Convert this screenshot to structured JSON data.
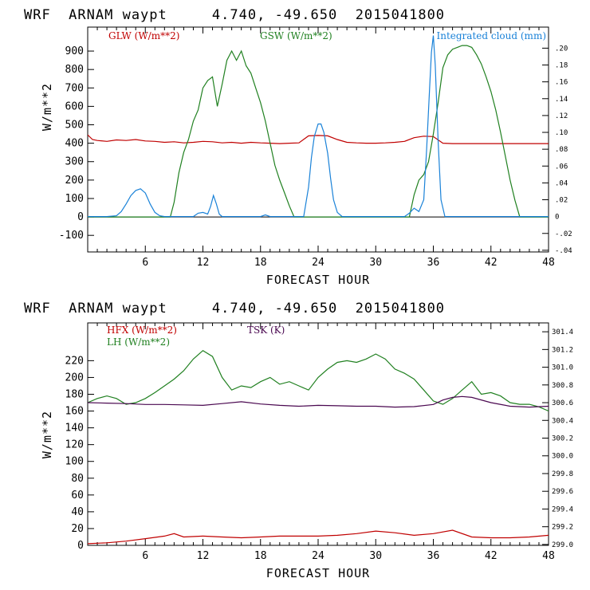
{
  "chart_data": [
    {
      "type": "line",
      "title": "WRF  ARNAM waypt     4.740, -49.650  2015041800",
      "xlabel": "FORECAST HOUR",
      "ylabel": "W/m**2",
      "xlim": [
        0,
        48
      ],
      "ylim": [
        -190,
        1030
      ],
      "x_ticks": [
        6,
        12,
        18,
        24,
        30,
        36,
        42,
        48
      ],
      "y_ticks": [
        900,
        800,
        700,
        600,
        500,
        400,
        300,
        200,
        100,
        0,
        -100
      ],
      "y2_ticks": [
        ".20",
        ".18",
        ".16",
        ".14",
        ".12",
        ".10",
        ".08",
        ".06",
        ".04",
        ".02",
        "0",
        "-.02",
        "-.04"
      ],
      "y2lim": [
        -0.042,
        0.225
      ],
      "legend": [
        "GLW (W/m**2)",
        "GSW (W/m**2)",
        "Integrated cloud (mm)"
      ],
      "series": [
        {
          "name": "GLW (W/m**2)",
          "axis": "left",
          "color": "#c00000",
          "x": [
            0,
            0.5,
            1,
            2,
            3,
            4,
            5,
            6,
            7,
            8,
            9,
            10,
            11,
            12,
            13,
            14,
            15,
            16,
            17,
            18,
            19,
            20,
            21,
            22,
            23,
            24,
            25,
            26,
            27,
            28,
            29,
            30,
            31,
            32,
            33,
            34,
            35,
            36,
            37,
            38,
            40,
            42,
            44,
            46,
            48
          ],
          "values": [
            445,
            420,
            415,
            410,
            418,
            415,
            420,
            412,
            410,
            405,
            408,
            402,
            405,
            410,
            408,
            402,
            405,
            400,
            405,
            402,
            400,
            398,
            400,
            402,
            440,
            442,
            440,
            420,
            405,
            402,
            400,
            400,
            402,
            405,
            410,
            430,
            438,
            436,
            400,
            398,
            398,
            398,
            398,
            398,
            398
          ]
        },
        {
          "name": "GSW (W/m**2)",
          "axis": "left",
          "color": "#208020",
          "x": [
            0,
            8.6,
            9,
            9.5,
            10,
            10.5,
            11,
            11.5,
            12,
            12.5,
            13,
            13.5,
            14,
            14.5,
            15,
            15.5,
            16,
            16.5,
            17,
            17.5,
            18,
            18.5,
            19,
            19.5,
            20,
            20.5,
            21,
            21.5,
            22,
            33.5,
            34,
            34.5,
            35,
            35.5,
            36,
            36.5,
            37,
            37.5,
            38,
            38.5,
            39,
            39.5,
            40,
            40.5,
            41,
            41.5,
            42,
            42.5,
            43,
            43.5,
            44,
            44.5,
            45,
            48
          ],
          "values": [
            0,
            0,
            80,
            240,
            350,
            420,
            520,
            580,
            700,
            740,
            760,
            600,
            720,
            850,
            900,
            850,
            900,
            820,
            780,
            700,
            620,
            520,
            400,
            280,
            200,
            130,
            60,
            0,
            0,
            0,
            120,
            200,
            230,
            300,
            450,
            620,
            810,
            880,
            910,
            920,
            930,
            930,
            920,
            880,
            830,
            760,
            680,
            580,
            460,
            330,
            200,
            90,
            0,
            0
          ]
        },
        {
          "name": "Integrated cloud (mm)",
          "axis": "right",
          "color": "#1a82d8",
          "x": [
            0,
            2,
            3,
            3.5,
            4,
            4.5,
            5,
            5.5,
            6,
            6.5,
            7,
            7.5,
            8,
            11,
            11.5,
            12,
            12.5,
            12.8,
            13.1,
            13.4,
            13.7,
            14,
            18,
            18.5,
            19,
            22.5,
            23,
            23.3,
            23.6,
            24,
            24.3,
            24.6,
            25,
            25.3,
            25.6,
            26,
            26.5,
            33,
            33.5,
            34,
            34.5,
            35,
            35.3,
            35.6,
            35.8,
            36,
            36.2,
            36.5,
            36.8,
            37.2,
            48
          ],
          "values": [
            0,
            0,
            0.001,
            0.006,
            0.015,
            0.025,
            0.031,
            0.033,
            0.028,
            0.015,
            0.005,
            0.001,
            0,
            0,
            0.004,
            0.005,
            0.003,
            0.012,
            0.025,
            0.015,
            0.003,
            0,
            0,
            0.002,
            0,
            0,
            0.035,
            0.07,
            0.095,
            0.11,
            0.11,
            0.1,
            0.075,
            0.045,
            0.02,
            0.005,
            0,
            0,
            0.004,
            0.01,
            0.006,
            0.02,
            0.08,
            0.15,
            0.195,
            0.215,
            0.18,
            0.09,
            0.02,
            0,
            0
          ]
        }
      ]
    },
    {
      "type": "line",
      "title": "WRF  ARNAM waypt     4.740, -49.650  2015041800",
      "xlabel": "FORECAST HOUR",
      "ylabel": "W/m**2",
      "xlim": [
        0,
        48
      ],
      "ylim": [
        0,
        265
      ],
      "x_ticks": [
        6,
        12,
        18,
        24,
        30,
        36,
        42,
        48
      ],
      "y_ticks": [
        220,
        200,
        180,
        160,
        140,
        120,
        100,
        80,
        60,
        40,
        20,
        0
      ],
      "y2_ticks": [
        "301.4",
        "301.2",
        "301.0",
        "300.8",
        "300.6",
        "300.4",
        "300.2",
        "300.0",
        "299.8",
        "299.6",
        "299.4",
        "299.2",
        "299.0"
      ],
      "y2lim": [
        298.99,
        301.5
      ],
      "legend": [
        "HFX (W/m**2)",
        "LH  (W/m**2)",
        "TSK (K)"
      ],
      "series": [
        {
          "name": "HFX (W/m**2)",
          "axis": "left",
          "color": "#c00000",
          "x": [
            0,
            2,
            4,
            6,
            8,
            9,
            10,
            12,
            14,
            16,
            18,
            20,
            22,
            24,
            26,
            28,
            30,
            32,
            34,
            36,
            38,
            40,
            42,
            44,
            46,
            48
          ],
          "values": [
            2,
            3,
            5,
            8,
            11,
            14,
            10,
            11,
            10,
            9,
            10,
            11,
            11,
            11,
            12,
            14,
            17,
            15,
            12,
            14,
            18,
            10,
            9,
            9,
            10,
            12
          ]
        },
        {
          "name": "LH  (W/m**2)",
          "axis": "left",
          "color": "#208020",
          "x": [
            0,
            1,
            2,
            3,
            4,
            5,
            6,
            7,
            8,
            9,
            10,
            11,
            12,
            13,
            14,
            15,
            16,
            17,
            18,
            19,
            20,
            21,
            22,
            23,
            24,
            25,
            26,
            27,
            28,
            29,
            30,
            31,
            32,
            33,
            34,
            35,
            36,
            37,
            38,
            39,
            40,
            41,
            42,
            43,
            44,
            45,
            46,
            47,
            48
          ],
          "values": [
            170,
            175,
            178,
            175,
            168,
            170,
            175,
            182,
            190,
            198,
            208,
            222,
            232,
            225,
            200,
            185,
            190,
            188,
            195,
            200,
            192,
            195,
            190,
            185,
            200,
            210,
            218,
            220,
            218,
            222,
            228,
            222,
            210,
            205,
            198,
            185,
            172,
            168,
            175,
            185,
            195,
            180,
            182,
            178,
            170,
            168,
            168,
            165,
            160
          ]
        },
        {
          "name": "TSK (K)",
          "axis": "right",
          "color": "#4a0850",
          "x": [
            0,
            2,
            4,
            6,
            8,
            10,
            12,
            14,
            16,
            18,
            20,
            22,
            24,
            26,
            28,
            30,
            32,
            34,
            36,
            37,
            38,
            39,
            40,
            42,
            44,
            46,
            48
          ],
          "values": [
            300.6,
            300.595,
            300.59,
            300.58,
            300.58,
            300.575,
            300.57,
            300.59,
            300.61,
            300.585,
            300.57,
            300.56,
            300.57,
            300.565,
            300.56,
            300.56,
            300.55,
            300.555,
            300.58,
            300.63,
            300.66,
            300.67,
            300.66,
            300.6,
            300.56,
            300.55,
            300.56
          ]
        }
      ]
    }
  ]
}
